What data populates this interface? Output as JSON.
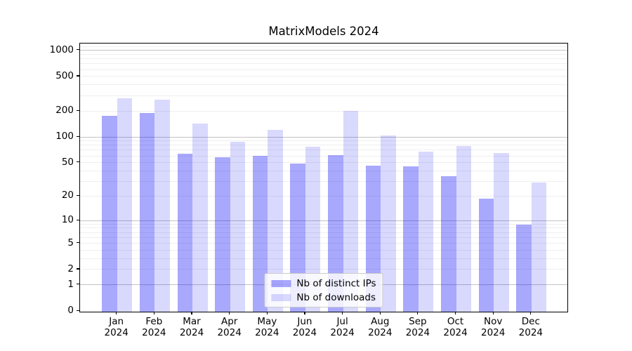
{
  "chart_data": {
    "type": "bar",
    "title": "MatrixModels 2024",
    "categories": [
      "Jan 2024",
      "Feb 2024",
      "Mar 2024",
      "Apr 2024",
      "May 2024",
      "Jun 2024",
      "Jul 2024",
      "Aug 2024",
      "Sep 2024",
      "Oct 2024",
      "Nov 2024",
      "Dec 2024"
    ],
    "series": [
      {
        "name": "Nb of distinct IPs",
        "color": "rgba(0,0,245,0.34)",
        "values": [
          180,
          192,
          65,
          59,
          61,
          50,
          62,
          47,
          46,
          35,
          19,
          9
        ]
      },
      {
        "name": "Nb of downloads",
        "color": "rgba(0,0,245,0.15)",
        "values": [
          285,
          275,
          145,
          89,
          123,
          78,
          203,
          105,
          69,
          80,
          66,
          30
        ]
      }
    ],
    "xlabel": "",
    "ylabel": "",
    "yscale": "log1p",
    "ylim": [
      0,
      1200
    ],
    "yticks": [
      0,
      1,
      2,
      5,
      10,
      20,
      50,
      100,
      200,
      500,
      1000
    ],
    "y_gridlines_major": [
      1,
      10,
      100,
      1000
    ],
    "y_gridlines_minor": [
      2,
      3,
      4,
      5,
      6,
      7,
      8,
      9,
      20,
      30,
      40,
      50,
      60,
      70,
      80,
      90,
      200,
      300,
      400,
      500,
      600,
      700,
      800,
      900,
      1100
    ],
    "grid": true,
    "legend_position": "lower center",
    "colors": {
      "major_grid": "#c3c3c3",
      "minor_grid": "#efefef",
      "spine": "#000000",
      "text": "#000000",
      "background": "#ffffff"
    }
  }
}
